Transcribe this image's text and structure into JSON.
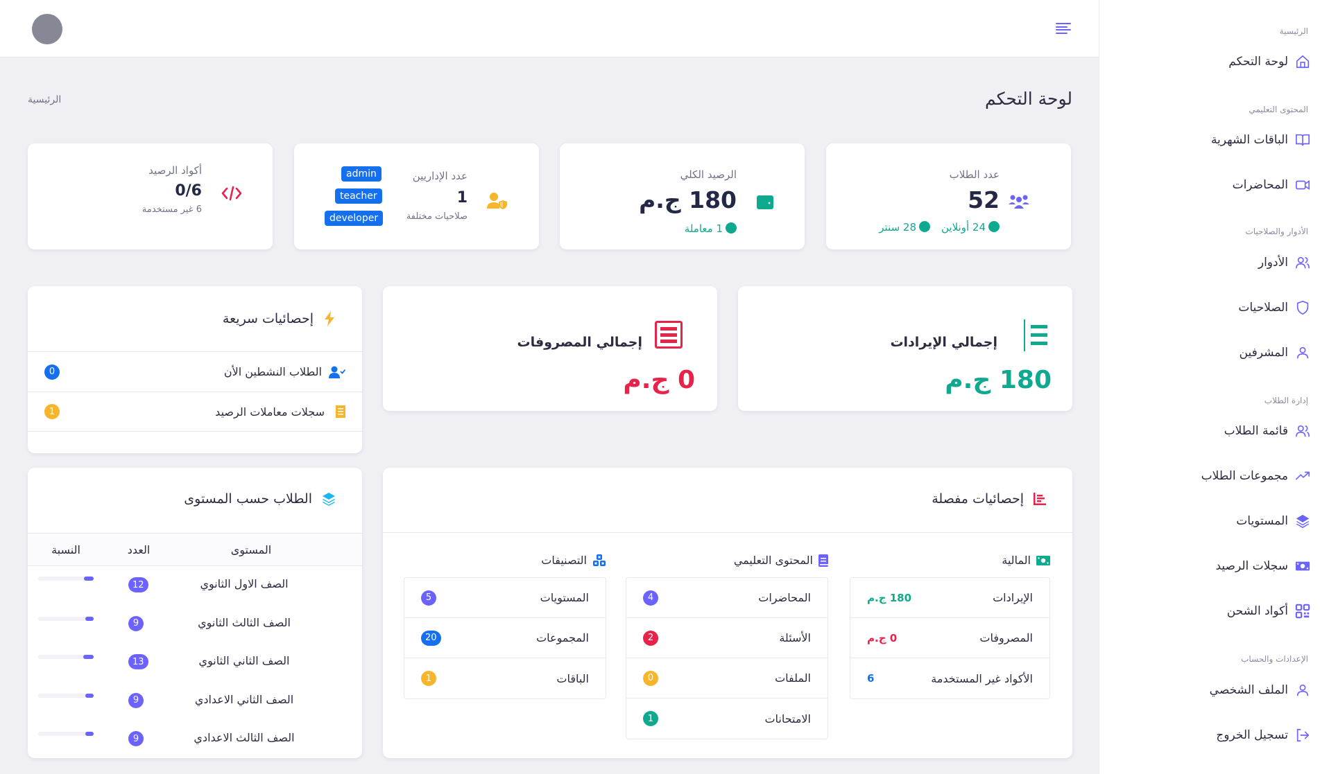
{
  "header": {
    "avatar": "user-avatar",
    "menu_icon": "hamburger-menu-icon"
  },
  "page": {
    "title": "لوحة التحكم",
    "breadcrumb": "الرئيسية"
  },
  "sidebar": {
    "sections": [
      {
        "label": "الرئيسية"
      },
      {
        "label": "المحتوى التعليمي"
      },
      {
        "label": "الأدوار والصلاحيات"
      },
      {
        "label": "إدارة الطلاب"
      },
      {
        "label": "الإعدادات والحساب"
      }
    ],
    "items": [
      {
        "label": "لوحة التحكم",
        "icon": "home-icon"
      },
      {
        "label": "الباقات الشهرية",
        "icon": "book-icon"
      },
      {
        "label": "المحاضرات",
        "icon": "video-icon"
      },
      {
        "label": "الأدوار",
        "icon": "users-icon"
      },
      {
        "label": "الصلاحيات",
        "icon": "shield-icon"
      },
      {
        "label": "المشرفين",
        "icon": "user-icon"
      },
      {
        "label": "قائمة الطلاب",
        "icon": "users-icon"
      },
      {
        "label": "مجموعات الطلاب",
        "icon": "trending-up-icon"
      },
      {
        "label": "المستويات",
        "icon": "layers-icon"
      },
      {
        "label": "سجلات الرصيد",
        "icon": "money-icon"
      },
      {
        "label": "أكواد الشحن",
        "icon": "qrcode-icon"
      },
      {
        "label": "الملف الشخصي",
        "icon": "user-icon"
      },
      {
        "label": "تسجيل الخروج",
        "icon": "logout-icon"
      }
    ]
  },
  "stats": {
    "students": {
      "label": "عدد الطلاب",
      "value": "52",
      "online": "24 أونلاين",
      "center": "28 سنتر"
    },
    "balance": {
      "label": "الرصيد الكلي",
      "value": "180 ج.م",
      "transactions": "1 معاملة"
    },
    "admins": {
      "label": "عدد الإداريين",
      "value": "1",
      "sub": "صلاحيات مختلفة",
      "roles": [
        "admin",
        "teacher",
        "developer"
      ]
    },
    "codes": {
      "label": "أكواد الرصيد",
      "value": "0/6",
      "sub": "6 غير مستخدمة"
    }
  },
  "totals": {
    "income": {
      "title": "إجمالي الإيرادات",
      "value": "180 ج.م",
      "color": "#0fa990"
    },
    "expenses": {
      "title": "إجمالي المصروفات",
      "value": "0 ج.م",
      "color": "#e8234a"
    }
  },
  "quick_stats": {
    "title": "إحصائيات سريعة",
    "rows": [
      {
        "label": "الطلاب النشطين الأن",
        "count": "0",
        "color": "#1570ef"
      },
      {
        "label": "سجلات معاملات الرصيد",
        "count": "1",
        "color": "#f6b52b"
      }
    ]
  },
  "levels": {
    "title": "الطلاب حسب المستوى",
    "columns": [
      "المستوى",
      "العدد",
      "النسبة"
    ],
    "rows": [
      {
        "level": "الصف الاول الثانوي",
        "count": "12",
        "percent": 23
      },
      {
        "level": "الصف الثالث الثانوي",
        "count": "9",
        "percent": 17
      },
      {
        "level": "الصف الثاني الثانوي",
        "count": "13",
        "percent": 25
      },
      {
        "level": "الصف الثاني الاعدادي",
        "count": "9",
        "percent": 17
      },
      {
        "level": "الصف الثالث الاعدادي",
        "count": "9",
        "percent": 17
      }
    ]
  },
  "detailed": {
    "title": "إحصائيات مفصلة",
    "finance": {
      "title": "المالية",
      "rows": [
        {
          "label": "الإيرادات",
          "value": "180 ج.م",
          "color": "#0fa990"
        },
        {
          "label": "المصروفات",
          "value": "0 ج.م",
          "color": "#e8234a"
        },
        {
          "label": "الأكواد غير المستخدمة",
          "value": "6",
          "color": "#1570ef"
        }
      ]
    },
    "content": {
      "title": "المحتوى التعليمي",
      "rows": [
        {
          "label": "المحاضرات",
          "count": "4",
          "color": "#6c63ff"
        },
        {
          "label": "الأسئلة",
          "count": "2",
          "color": "#e8234a"
        },
        {
          "label": "الملفات",
          "count": "0",
          "color": "#f6b52b"
        },
        {
          "label": "الامتحانات",
          "count": "1",
          "color": "#0fa990"
        }
      ]
    },
    "categories": {
      "title": "التصنيفات",
      "rows": [
        {
          "label": "المستويات",
          "count": "5",
          "color": "#6c63ff"
        },
        {
          "label": "المجموعات",
          "count": "20",
          "color": "#1570ef"
        },
        {
          "label": "الباقات",
          "count": "1",
          "color": "#f6b52b"
        }
      ]
    }
  },
  "colors": {
    "accent": "#6c63ff",
    "success": "#0fa990",
    "danger": "#e8234a",
    "warning": "#f6b52b",
    "primary": "#1570ef",
    "text": "#2b2c40",
    "muted": "#6f7288"
  }
}
